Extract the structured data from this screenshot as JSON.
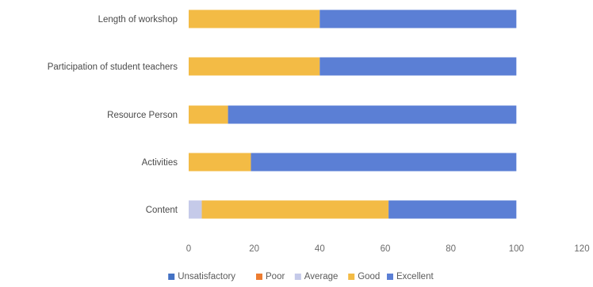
{
  "chart_data": {
    "type": "bar",
    "orientation": "horizontal",
    "stacked": true,
    "categories": [
      "Length of workshop",
      "Participation of student teachers",
      "Resource Person",
      "Activities",
      "Content"
    ],
    "series": [
      {
        "name": "Unsatisfactory",
        "color": "#4472c4",
        "values": [
          0,
          0,
          0,
          0,
          0
        ]
      },
      {
        "name": "Poor",
        "color": "#ed7d31",
        "values": [
          0,
          0,
          0,
          0,
          0
        ]
      },
      {
        "name": "Average",
        "color": "#c5cae9",
        "values": [
          0,
          0,
          0,
          0,
          4
        ]
      },
      {
        "name": "Good",
        "color": "#f3bb45",
        "values": [
          40,
          40,
          12,
          19,
          57
        ]
      },
      {
        "name": "Excellent",
        "color": "#5b7fd5",
        "values": [
          60,
          60,
          88,
          81,
          39
        ]
      }
    ],
    "x_ticks": [
      "0",
      "20",
      "40",
      "60",
      "80",
      "100",
      "120"
    ],
    "xlim": [
      0,
      120
    ],
    "legend_position": "bottom",
    "grid": false
  }
}
